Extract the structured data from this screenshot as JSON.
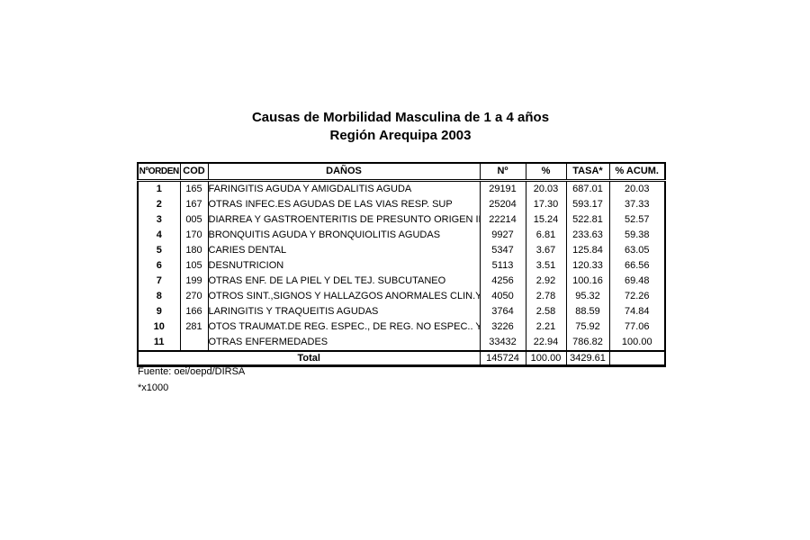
{
  "title": {
    "line1": "Causas de Morbilidad Masculina de 1 a 4 años",
    "line2": "Región Arequipa 2003"
  },
  "table": {
    "headers": [
      "NºORDEN",
      "COD",
      "DAÑOS",
      "Nº",
      "%",
      "TASA*",
      "% ACUM."
    ],
    "rows": [
      {
        "orden": "1",
        "cod": "165",
        "danos": "FARINGITIS AGUDA Y AMIGDALITIS AGUDA",
        "n": "29191",
        "pct": "20.03",
        "tasa": "687.01",
        "pct_acum": "20.03"
      },
      {
        "orden": "2",
        "cod": "167",
        "danos": "OTRAS INFEC.ES AGUDAS DE LAS VIAS RESP. SUP",
        "n": "25204",
        "pct": "17.30",
        "tasa": "593.17",
        "pct_acum": "37.33"
      },
      {
        "orden": "3",
        "cod": "005",
        "danos": "DIARREA Y GASTROENTERITIS DE PRESUNTO ORIGEN INFECC",
        "n": "22214",
        "pct": "15.24",
        "tasa": "522.81",
        "pct_acum": "52.57"
      },
      {
        "orden": "4",
        "cod": "170",
        "danos": "BRONQUITIS AGUDA Y BRONQUIOLITIS AGUDAS",
        "n": "9927",
        "pct": "6.81",
        "tasa": "233.63",
        "pct_acum": "59.38"
      },
      {
        "orden": "5",
        "cod": "180",
        "danos": "CARIES DENTAL",
        "n": "5347",
        "pct": "3.67",
        "tasa": "125.84",
        "pct_acum": "63.05"
      },
      {
        "orden": "6",
        "cod": "105",
        "danos": "DESNUTRICION",
        "n": "5113",
        "pct": "3.51",
        "tasa": "120.33",
        "pct_acum": "66.56"
      },
      {
        "orden": "7",
        "cod": "199",
        "danos": "OTRAS ENF. DE LA PIEL Y DEL TEJ. SUBCUTANEO",
        "n": "4256",
        "pct": "2.92",
        "tasa": "100.16",
        "pct_acum": "69.48"
      },
      {
        "orden": "8",
        "cod": "270",
        "danos": "OTROS SINT.,SIGNOS Y HALLAZGOS ANORMALES CLIN.Y DE",
        "n": "4050",
        "pct": "2.78",
        "tasa": "95.32",
        "pct_acum": "72.26"
      },
      {
        "orden": "9",
        "cod": "166",
        "danos": "LARINGITIS Y TRAQUEITIS AGUDAS",
        "n": "3764",
        "pct": "2.58",
        "tasa": "88.59",
        "pct_acum": "74.84"
      },
      {
        "orden": "10",
        "cod": "281",
        "danos": "OTOS TRAUMAT.DE REG. ESPEC., DE REG. NO ESPEC.. Y DE M",
        "n": "3226",
        "pct": "2.21",
        "tasa": "75.92",
        "pct_acum": "77.06"
      },
      {
        "orden": "11",
        "cod": "",
        "danos": "OTRAS ENFERMEDADES",
        "n": "33432",
        "pct": "22.94",
        "tasa": "786.82",
        "pct_acum": "100.00"
      }
    ],
    "total": {
      "label": "Total",
      "n": "145724",
      "pct": "100.00",
      "tasa": "3429.61",
      "pct_acum": ""
    }
  },
  "footer": {
    "fuente": "Fuente: oei/oepd/DIRSA",
    "footnote": "*x1000"
  },
  "colors": {
    "text": "#000000",
    "border": "#000000",
    "background": "#ffffff"
  }
}
